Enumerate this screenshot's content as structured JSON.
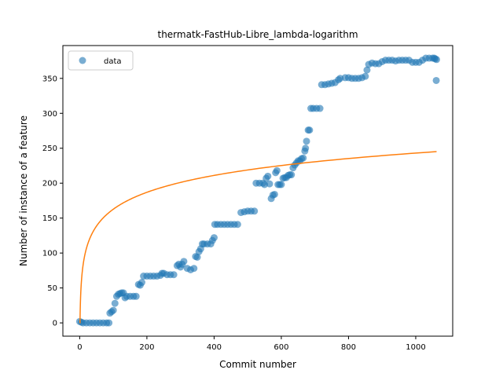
{
  "chart_data": {
    "type": "scatter",
    "title": "thermatk-FastHub-Libre_lambda-logarithm",
    "xlabel": "Commit number",
    "ylabel": "Number of instance of a feature",
    "xlim": [
      -50,
      1110
    ],
    "ylim": [
      -19,
      397
    ],
    "xticks": [
      0,
      200,
      400,
      600,
      800,
      1000
    ],
    "yticks": [
      0,
      50,
      100,
      150,
      200,
      250,
      300,
      350
    ],
    "grid": false,
    "legend_position": "top-left",
    "legend": [
      {
        "label": "data",
        "marker": "circle"
      }
    ],
    "colors": {
      "data": "#1f77b4",
      "fit": "#ff7f0e"
    },
    "series": [
      {
        "name": "data",
        "kind": "scatter",
        "points": [
          [
            0,
            2
          ],
          [
            5,
            1
          ],
          [
            10,
            0
          ],
          [
            20,
            0
          ],
          [
            30,
            0
          ],
          [
            40,
            0
          ],
          [
            50,
            0
          ],
          [
            60,
            0
          ],
          [
            70,
            0
          ],
          [
            80,
            0
          ],
          [
            87,
            0
          ],
          [
            90,
            14
          ],
          [
            95,
            16
          ],
          [
            100,
            18
          ],
          [
            105,
            28
          ],
          [
            110,
            38
          ],
          [
            115,
            41
          ],
          [
            120,
            42
          ],
          [
            125,
            43
          ],
          [
            130,
            43
          ],
          [
            135,
            36
          ],
          [
            140,
            38
          ],
          [
            150,
            38
          ],
          [
            160,
            38
          ],
          [
            168,
            38
          ],
          [
            175,
            55
          ],
          [
            180,
            54
          ],
          [
            185,
            58
          ],
          [
            190,
            67
          ],
          [
            200,
            67
          ],
          [
            210,
            67
          ],
          [
            220,
            67
          ],
          [
            230,
            67
          ],
          [
            240,
            68
          ],
          [
            245,
            71
          ],
          [
            250,
            71
          ],
          [
            260,
            69
          ],
          [
            270,
            69
          ],
          [
            280,
            69
          ],
          [
            290,
            82
          ],
          [
            295,
            84
          ],
          [
            300,
            80
          ],
          [
            305,
            84
          ],
          [
            310,
            88
          ],
          [
            320,
            78
          ],
          [
            330,
            76
          ],
          [
            340,
            78
          ],
          [
            345,
            95
          ],
          [
            350,
            94
          ],
          [
            355,
            102
          ],
          [
            360,
            106
          ],
          [
            365,
            113
          ],
          [
            370,
            113
          ],
          [
            380,
            113
          ],
          [
            390,
            113
          ],
          [
            395,
            118
          ],
          [
            400,
            122
          ],
          [
            402,
            141
          ],
          [
            410,
            141
          ],
          [
            420,
            141
          ],
          [
            430,
            141
          ],
          [
            440,
            141
          ],
          [
            450,
            141
          ],
          [
            460,
            141
          ],
          [
            470,
            141
          ],
          [
            480,
            158
          ],
          [
            490,
            159
          ],
          [
            500,
            160
          ],
          [
            510,
            160
          ],
          [
            520,
            160
          ],
          [
            525,
            200
          ],
          [
            535,
            200
          ],
          [
            545,
            200
          ],
          [
            550,
            198
          ],
          [
            555,
            207
          ],
          [
            560,
            210
          ],
          [
            565,
            199
          ],
          [
            570,
            178
          ],
          [
            575,
            183
          ],
          [
            580,
            184
          ],
          [
            583,
            215
          ],
          [
            587,
            218
          ],
          [
            590,
            198
          ],
          [
            595,
            198
          ],
          [
            600,
            198
          ],
          [
            605,
            207
          ],
          [
            610,
            208
          ],
          [
            615,
            208
          ],
          [
            620,
            211
          ],
          [
            625,
            212
          ],
          [
            630,
            212
          ],
          [
            635,
            222
          ],
          [
            640,
            226
          ],
          [
            645,
            229
          ],
          [
            650,
            232
          ],
          [
            655,
            232
          ],
          [
            660,
            235
          ],
          [
            665,
            236
          ],
          [
            670,
            246
          ],
          [
            672,
            250
          ],
          [
            675,
            260
          ],
          [
            680,
            276
          ],
          [
            684,
            276
          ],
          [
            688,
            307
          ],
          [
            695,
            307
          ],
          [
            705,
            307
          ],
          [
            715,
            307
          ],
          [
            720,
            341
          ],
          [
            730,
            341
          ],
          [
            740,
            342
          ],
          [
            750,
            343
          ],
          [
            760,
            344
          ],
          [
            770,
            348
          ],
          [
            775,
            350
          ],
          [
            790,
            351
          ],
          [
            800,
            351
          ],
          [
            810,
            350
          ],
          [
            820,
            350
          ],
          [
            830,
            350
          ],
          [
            840,
            351
          ],
          [
            850,
            353
          ],
          [
            855,
            362
          ],
          [
            860,
            370
          ],
          [
            870,
            372
          ],
          [
            880,
            371
          ],
          [
            890,
            371
          ],
          [
            900,
            374
          ],
          [
            910,
            376
          ],
          [
            920,
            376
          ],
          [
            930,
            376
          ],
          [
            940,
            375
          ],
          [
            950,
            376
          ],
          [
            960,
            376
          ],
          [
            970,
            376
          ],
          [
            980,
            376
          ],
          [
            990,
            373
          ],
          [
            1000,
            373
          ],
          [
            1010,
            373
          ],
          [
            1020,
            376
          ],
          [
            1030,
            379
          ],
          [
            1040,
            379
          ],
          [
            1050,
            379
          ],
          [
            1055,
            379
          ],
          [
            1058,
            378
          ],
          [
            1061,
            347
          ],
          [
            1062,
            377
          ]
        ]
      },
      {
        "name": "fit",
        "kind": "line",
        "model": "a+b*ln(x)",
        "a": 2.0,
        "b": 34.9,
        "x_range": [
          0,
          1062
        ]
      }
    ]
  }
}
